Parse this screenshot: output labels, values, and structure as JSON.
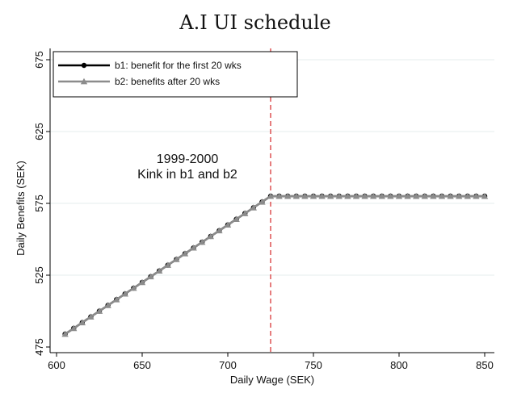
{
  "chart_data": {
    "type": "line",
    "title": "A.I UI schedule",
    "xlabel": "Daily Wage (SEK)",
    "ylabel": "Daily Benefits (SEK)",
    "xlim": [
      600,
      850
    ],
    "ylim": [
      475,
      675
    ],
    "xticks": [
      600,
      650,
      700,
      750,
      800,
      850
    ],
    "yticks": [
      475,
      525,
      575,
      625,
      675
    ],
    "grid": "horizontal",
    "legend_position": "top-left",
    "annotation": {
      "lines": [
        "1999-2000",
        "Kink in b1 and b2"
      ]
    },
    "kink_line": {
      "x": 725,
      "color": "#d62728",
      "style": "dashed"
    },
    "series": [
      {
        "name": "b1: benefit for the first 20 wks",
        "color": "#000000",
        "marker": "circle",
        "x": [
          605,
          610,
          615,
          620,
          625,
          630,
          635,
          640,
          645,
          650,
          655,
          660,
          665,
          670,
          675,
          680,
          685,
          690,
          695,
          700,
          705,
          710,
          715,
          720,
          725,
          730,
          735,
          740,
          745,
          750,
          755,
          760,
          765,
          770,
          775,
          780,
          785,
          790,
          795,
          800,
          805,
          810,
          815,
          820,
          825,
          830,
          835,
          840,
          845,
          850
        ],
        "y": [
          484,
          488,
          492,
          496,
          500,
          504,
          508,
          512,
          516,
          520,
          524,
          528,
          532,
          536,
          540,
          544,
          548,
          552,
          556,
          560,
          564,
          568,
          572,
          576,
          580,
          580,
          580,
          580,
          580,
          580,
          580,
          580,
          580,
          580,
          580,
          580,
          580,
          580,
          580,
          580,
          580,
          580,
          580,
          580,
          580,
          580,
          580,
          580,
          580,
          580
        ]
      },
      {
        "name": "b2: benefits after 20 wks",
        "color": "#8c8c8c",
        "marker": "triangle",
        "x": [
          605,
          610,
          615,
          620,
          625,
          630,
          635,
          640,
          645,
          650,
          655,
          660,
          665,
          670,
          675,
          680,
          685,
          690,
          695,
          700,
          705,
          710,
          715,
          720,
          725,
          730,
          735,
          740,
          745,
          750,
          755,
          760,
          765,
          770,
          775,
          780,
          785,
          790,
          795,
          800,
          805,
          810,
          815,
          820,
          825,
          830,
          835,
          840,
          845,
          850
        ],
        "y": [
          484,
          488,
          492,
          496,
          500,
          504,
          508,
          512,
          516,
          520,
          524,
          528,
          532,
          536,
          540,
          544,
          548,
          552,
          556,
          560,
          564,
          568,
          572,
          576,
          580,
          580,
          580,
          580,
          580,
          580,
          580,
          580,
          580,
          580,
          580,
          580,
          580,
          580,
          580,
          580,
          580,
          580,
          580,
          580,
          580,
          580,
          580,
          580,
          580,
          580
        ]
      }
    ]
  }
}
